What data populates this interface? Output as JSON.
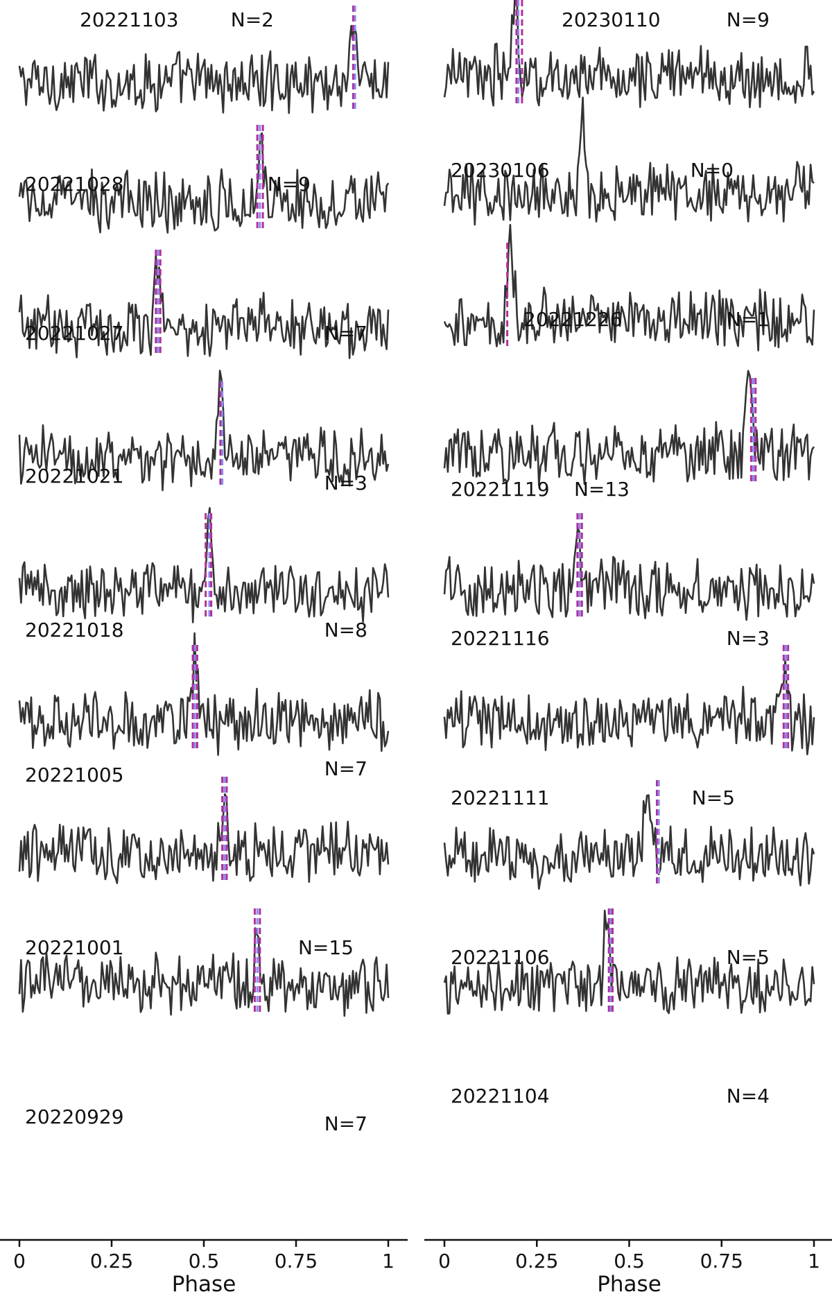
{
  "chart_data": {
    "type": "line",
    "xlabel": "Phase",
    "xlim": [
      0,
      1
    ],
    "ticks": [
      "0",
      "0.25",
      "0.5",
      "0.75",
      "1"
    ],
    "tick_values": [
      0,
      0.25,
      0.5,
      0.75,
      1
    ],
    "colors": {
      "trace": "#333333",
      "marker_a": "#b0309a",
      "marker_b": "#8a8af0"
    },
    "panels": [
      {
        "date": "20221103",
        "count": "N=2",
        "col": 0,
        "row": 0,
        "peak": 0.905,
        "markers": [
          0.905,
          0.91
        ]
      },
      {
        "date": "20221028",
        "count": "N=9",
        "col": 0,
        "row": 1,
        "peak": 0.655,
        "markers": [
          0.645,
          0.652,
          0.66
        ]
      },
      {
        "date": "20221027",
        "count": "N=7",
        "col": 0,
        "row": 2,
        "peak": 0.375,
        "markers": [
          0.37,
          0.376,
          0.382
        ]
      },
      {
        "date": "20221021",
        "count": "N=3",
        "col": 0,
        "row": 3,
        "peak": 0.545,
        "markers": [
          0.545,
          0.55
        ]
      },
      {
        "date": "20221018",
        "count": "N=8",
        "col": 0,
        "row": 4,
        "peak": 0.515,
        "markers": [
          0.505,
          0.515,
          0.52
        ]
      },
      {
        "date": "20221005",
        "count": "N=7",
        "col": 0,
        "row": 5,
        "peak": 0.475,
        "markers": [
          0.47,
          0.476,
          0.482
        ]
      },
      {
        "date": "20221001",
        "count": "N=15",
        "col": 0,
        "row": 6,
        "peak": 0.555,
        "markers": [
          0.55,
          0.556,
          0.562
        ]
      },
      {
        "date": "20220929",
        "count": "N=7",
        "col": 0,
        "row": 7,
        "peak": 0.645,
        "markers": [
          0.638,
          0.645,
          0.652
        ]
      },
      {
        "date": "20230110",
        "count": "N=9",
        "col": 1,
        "row": 0,
        "peak": 0.19,
        "markers": [
          0.195,
          0.2,
          0.21
        ]
      },
      {
        "date": "20230106",
        "count": "N=0",
        "col": 1,
        "row": 1,
        "peak": 0.375,
        "markers": []
      },
      {
        "date": "20221226",
        "count": "N=1",
        "col": 1,
        "row": 2,
        "peak": 0.18,
        "markers": [
          0.17
        ]
      },
      {
        "date": "20221119",
        "count": "N=13",
        "col": 1,
        "row": 3,
        "peak": 0.825,
        "markers": [
          0.83,
          0.836,
          0.842
        ]
      },
      {
        "date": "20221116",
        "count": "N=3",
        "col": 1,
        "row": 4,
        "peak": 0.36,
        "markers": [
          0.36,
          0.366,
          0.372
        ]
      },
      {
        "date": "20221111",
        "count": "N=5",
        "col": 1,
        "row": 5,
        "peak": 0.915,
        "markers": [
          0.918,
          0.924,
          0.93
        ]
      },
      {
        "date": "20221106",
        "count": "N=5",
        "col": 1,
        "row": 6,
        "peak": 0.545,
        "markers": [
          0.575,
          0.58
        ]
      },
      {
        "date": "20221104",
        "count": "N=4",
        "col": 1,
        "row": 7,
        "peak": 0.44,
        "markers": [
          0.445,
          0.45,
          0.455
        ]
      }
    ]
  }
}
